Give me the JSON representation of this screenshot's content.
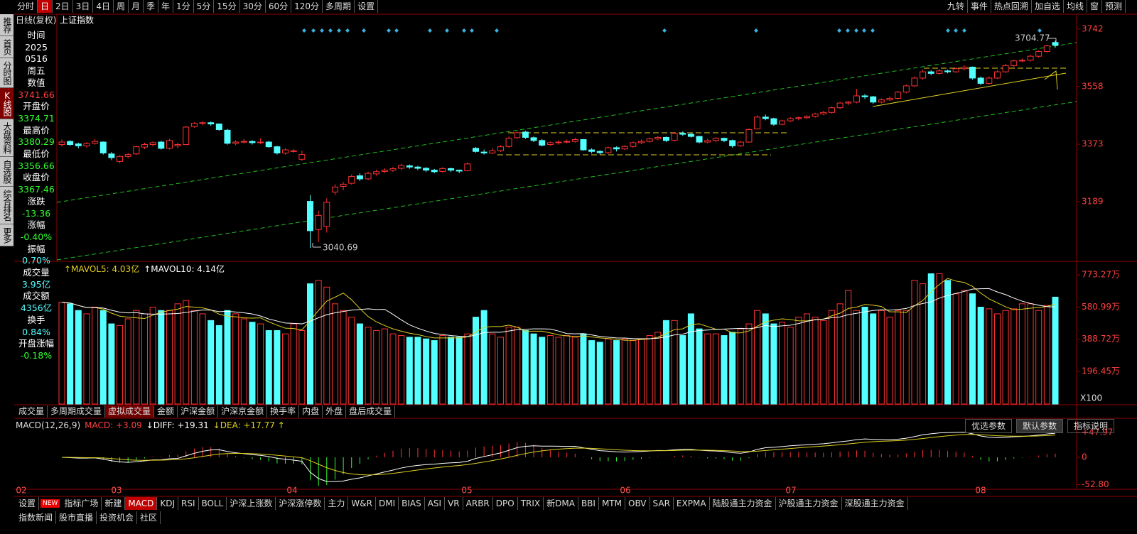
{
  "toolbar": {
    "left": [
      "分时",
      "日",
      "2日",
      "3日",
      "4日",
      "周",
      "月",
      "季",
      "年",
      "1分",
      "5分",
      "15分",
      "30分",
      "60分",
      "120分",
      "多周期",
      "设置"
    ],
    "right": [
      "九转",
      "事件",
      "热点回溯",
      "加自选",
      "均线",
      "窗",
      "预测"
    ]
  },
  "sidebar": [
    "推荐",
    "首页",
    "分时图",
    "K线图",
    "大盘资料",
    "自选股",
    "综合排名",
    "更多"
  ],
  "info": [
    {
      "label": "时间",
      "lines": [
        "2025",
        "0516",
        "周五"
      ],
      "color": "#ffffff"
    },
    {
      "label": "数值",
      "lines": [
        "3741.66"
      ],
      "color": "#ff4040"
    },
    {
      "label": "开盘价",
      "lines": [
        "3374.71"
      ],
      "color": "#30ff30"
    },
    {
      "label": "最高价",
      "lines": [
        "3380.29"
      ],
      "color": "#30ff30"
    },
    {
      "label": "最低价",
      "lines": [
        "3356.66"
      ],
      "color": "#30ff30"
    },
    {
      "label": "收盘价",
      "lines": [
        "3367.46"
      ],
      "color": "#30ff30"
    },
    {
      "label": "涨跌",
      "lines": [
        "-13.36"
      ],
      "color": "#30ff30"
    },
    {
      "label": "涨幅",
      "lines": [
        "-0.40%"
      ],
      "color": "#30ff30"
    },
    {
      "label": "振幅",
      "lines": [
        "0.70%"
      ],
      "color": "#54ffff"
    },
    {
      "label": "成交量",
      "lines": [
        "3.95亿"
      ],
      "color": "#54ffff"
    },
    {
      "label": "成交额",
      "lines": [
        "4356亿"
      ],
      "color": "#54ffff"
    },
    {
      "label": "换手",
      "lines": [
        "0.84%"
      ],
      "color": "#54ffff"
    },
    {
      "label": "开盘涨幅",
      "lines": [
        "-0.18%"
      ],
      "color": "#30ff30"
    }
  ],
  "chart_data": {
    "type": "candlestick",
    "title": "日线(复权)",
    "symbol": "上证指数",
    "months": [
      "02",
      "03",
      "04",
      "05",
      "06",
      "07",
      "08"
    ],
    "ylim": [
      2998,
      3785
    ],
    "yticks": [
      3742,
      3558,
      3373,
      3189
    ],
    "up_color": "#ff3232",
    "down_color": "#54ffff",
    "candles": [
      [
        3372,
        3388,
        3366,
        3380
      ],
      [
        3382,
        3386,
        3368,
        3372
      ],
      [
        3374,
        3378,
        3360,
        3368
      ],
      [
        3368,
        3380,
        3362,
        3375
      ],
      [
        3376,
        3390,
        3372,
        3382
      ],
      [
        3380,
        3382,
        3340,
        3345
      ],
      [
        3342,
        3348,
        3322,
        3330
      ],
      [
        3318,
        3338,
        3312,
        3334
      ],
      [
        3334,
        3345,
        3328,
        3340
      ],
      [
        3342,
        3368,
        3338,
        3365
      ],
      [
        3364,
        3378,
        3358,
        3372
      ],
      [
        3372,
        3382,
        3366,
        3378
      ],
      [
        3380,
        3384,
        3356,
        3360
      ],
      [
        3360,
        3390,
        3356,
        3385
      ],
      [
        3368,
        3378,
        3360,
        3372
      ],
      [
        3372,
        3432,
        3370,
        3428
      ],
      [
        3430,
        3444,
        3426,
        3440
      ],
      [
        3440,
        3446,
        3434,
        3442
      ],
      [
        3442,
        3446,
        3432,
        3438
      ],
      [
        3438,
        3440,
        3416,
        3420
      ],
      [
        3418,
        3422,
        3372,
        3376
      ],
      [
        3376,
        3386,
        3370,
        3380
      ],
      [
        3380,
        3390,
        3376,
        3382
      ],
      [
        3382,
        3386,
        3372,
        3378
      ],
      [
        3378,
        3392,
        3374,
        3380
      ],
      [
        3380,
        3384,
        3362,
        3365
      ],
      [
        3365,
        3368,
        3340,
        3345
      ],
      [
        3345,
        3360,
        3340,
        3355
      ],
      [
        3352,
        3358,
        3346,
        3352
      ],
      [
        3325,
        3352,
        3320,
        3340
      ],
      [
        3190,
        3210,
        3040.69,
        3096
      ],
      [
        3100,
        3160,
        3060,
        3145
      ],
      [
        3110,
        3200,
        3090,
        3187
      ],
      [
        3220,
        3245,
        3210,
        3236
      ],
      [
        3238,
        3252,
        3226,
        3245
      ],
      [
        3248,
        3276,
        3244,
        3270
      ],
      [
        3272,
        3280,
        3255,
        3262
      ],
      [
        3262,
        3285,
        3258,
        3280
      ],
      [
        3278,
        3292,
        3272,
        3285
      ],
      [
        3286,
        3296,
        3280,
        3290
      ],
      [
        3290,
        3300,
        3284,
        3295
      ],
      [
        3296,
        3310,
        3290,
        3305
      ],
      [
        3304,
        3308,
        3294,
        3300
      ],
      [
        3300,
        3304,
        3290,
        3296
      ],
      [
        3296,
        3300,
        3284,
        3290
      ],
      [
        3290,
        3294,
        3280,
        3285
      ],
      [
        3286,
        3300,
        3282,
        3295
      ],
      [
        3295,
        3298,
        3284,
        3290
      ],
      [
        3290,
        3292,
        3280,
        3287
      ],
      [
        3288,
        3315,
        3286,
        3310
      ],
      [
        3360,
        3364,
        3346,
        3350
      ],
      [
        3348,
        3356,
        3340,
        3345
      ],
      [
        3345,
        3360,
        3342,
        3352
      ],
      [
        3352,
        3370,
        3348,
        3365
      ],
      [
        3366,
        3398,
        3362,
        3392
      ],
      [
        3394,
        3414,
        3390,
        3410
      ],
      [
        3412,
        3416,
        3390,
        3395
      ],
      [
        3394,
        3398,
        3380,
        3385
      ],
      [
        3385,
        3390,
        3366,
        3370
      ],
      [
        3372,
        3382,
        3368,
        3378
      ],
      [
        3378,
        3386,
        3372,
        3380
      ],
      [
        3380,
        3388,
        3376,
        3382
      ],
      [
        3382,
        3394,
        3378,
        3388
      ],
      [
        3388,
        3390,
        3352,
        3355
      ],
      [
        3355,
        3360,
        3344,
        3350
      ],
      [
        3350,
        3354,
        3340,
        3346
      ],
      [
        3346,
        3366,
        3342,
        3362
      ],
      [
        3362,
        3366,
        3350,
        3358
      ],
      [
        3358,
        3370,
        3354,
        3366
      ],
      [
        3366,
        3382,
        3362,
        3378
      ],
      [
        3378,
        3388,
        3374,
        3382
      ],
      [
        3382,
        3394,
        3378,
        3390
      ],
      [
        3390,
        3400,
        3386,
        3395
      ],
      [
        3395,
        3398,
        3380,
        3385
      ],
      [
        3386,
        3412,
        3382,
        3408
      ],
      [
        3408,
        3414,
        3400,
        3405
      ],
      [
        3405,
        3410,
        3394,
        3398
      ],
      [
        3398,
        3400,
        3376,
        3380
      ],
      [
        3380,
        3390,
        3376,
        3385
      ],
      [
        3385,
        3396,
        3380,
        3392
      ],
      [
        3392,
        3394,
        3380,
        3385
      ],
      [
        3385,
        3388,
        3362,
        3368
      ],
      [
        3368,
        3384,
        3364,
        3380
      ],
      [
        3380,
        3424,
        3378,
        3420
      ],
      [
        3422,
        3466,
        3420,
        3460
      ],
      [
        3460,
        3468,
        3450,
        3455
      ],
      [
        3455,
        3458,
        3432,
        3437
      ],
      [
        3437,
        3452,
        3434,
        3448
      ],
      [
        3448,
        3460,
        3444,
        3455
      ],
      [
        3455,
        3462,
        3450,
        3458
      ],
      [
        3458,
        3466,
        3454,
        3462
      ],
      [
        3462,
        3474,
        3458,
        3470
      ],
      [
        3470,
        3480,
        3466,
        3475
      ],
      [
        3475,
        3494,
        3472,
        3490
      ],
      [
        3490,
        3508,
        3486,
        3505
      ],
      [
        3505,
        3512,
        3498,
        3508
      ],
      [
        3508,
        3550,
        3504,
        3528
      ],
      [
        3528,
        3534,
        3518,
        3525
      ],
      [
        3525,
        3528,
        3502,
        3508
      ],
      [
        3508,
        3520,
        3504,
        3515
      ],
      [
        3515,
        3526,
        3512,
        3520
      ],
      [
        3520,
        3544,
        3516,
        3540
      ],
      [
        3540,
        3564,
        3536,
        3560
      ],
      [
        3560,
        3590,
        3556,
        3585
      ],
      [
        3585,
        3612,
        3580,
        3605
      ],
      [
        3605,
        3610,
        3594,
        3600
      ],
      [
        3600,
        3614,
        3596,
        3608
      ],
      [
        3608,
        3612,
        3600,
        3605
      ],
      [
        3605,
        3620,
        3602,
        3615
      ],
      [
        3615,
        3626,
        3610,
        3620
      ],
      [
        3620,
        3622,
        3580,
        3585
      ],
      [
        3585,
        3590,
        3562,
        3568
      ],
      [
        3568,
        3590,
        3564,
        3585
      ],
      [
        3585,
        3610,
        3582,
        3605
      ],
      [
        3605,
        3630,
        3602,
        3625
      ],
      [
        3625,
        3644,
        3620,
        3640
      ],
      [
        3640,
        3648,
        3636,
        3642
      ],
      [
        3642,
        3660,
        3638,
        3655
      ],
      [
        3655,
        3674,
        3650,
        3670
      ],
      [
        3670,
        3692,
        3666,
        3688
      ],
      [
        3699,
        3704.77,
        3682,
        3690
      ]
    ],
    "volume": {
      "header": [
        "↑MAVOL5: 4.03亿",
        "↑MAVOL10: 4.14亿"
      ],
      "unit": "X100",
      "ylim": [
        0,
        816
      ],
      "yticks": [
        {
          "value": 773.27,
          "label": "773.27万"
        },
        {
          "value": 580.99,
          "label": "580.99万"
        },
        {
          "value": 388.72,
          "label": "388.72万"
        },
        {
          "value": 196.45,
          "label": "196.45万"
        }
      ],
      "values": [
        610,
        600,
        560,
        540,
        580,
        560,
        480,
        470,
        510,
        560,
        540,
        580,
        560,
        560,
        600,
        620,
        560,
        540,
        500,
        470,
        560,
        540,
        510,
        490,
        480,
        440,
        440,
        420,
        480,
        440,
        720,
        740,
        700,
        600,
        560,
        520,
        480,
        460,
        440,
        450,
        420,
        410,
        400,
        400,
        390,
        380,
        410,
        400,
        400,
        420,
        520,
        560,
        420,
        400,
        460,
        460,
        440,
        420,
        400,
        410,
        400,
        410,
        400,
        420,
        380,
        370,
        390,
        380,
        390,
        380,
        390,
        410,
        430,
        500,
        500,
        410,
        540,
        450,
        420,
        420,
        410,
        430,
        450,
        480,
        560,
        540,
        480,
        490,
        460,
        520,
        540,
        520,
        500,
        560,
        600,
        680,
        560,
        580,
        540,
        560,
        520,
        560,
        560,
        740,
        720,
        780,
        780,
        740,
        660,
        680,
        660,
        580,
        570,
        540,
        560,
        570,
        600,
        600,
        560,
        590,
        640
      ],
      "tabs": [
        "成交量",
        "多周期成交量",
        "虚拟成交量",
        "金额",
        "沪深金额",
        "沪深京金额",
        "换手率",
        "内盘",
        "外盘",
        "盘后成交量"
      ]
    },
    "macd": {
      "header": [
        "MACD(12,26,9)",
        "MACD: +3.09",
        "↓DIFF: +19.31",
        "↓DEA: +17.77 ↑"
      ],
      "buttons": [
        "优选参数",
        "默认参数",
        "指标说明"
      ],
      "ylim": [
        -60.3,
        71.3
      ],
      "yticks": [
        {
          "value": 47.97,
          "label": "+47.97"
        },
        0,
        {
          "value": -52.8,
          "label": "-52.80"
        }
      ]
    }
  },
  "indicator_tabs": [
    "设置",
    "NEW",
    "指标广场",
    "新建",
    "MACD",
    "KDJ",
    "RSI",
    "BOLL",
    "沪深上涨数",
    "沪深涨停数",
    "主力",
    "W&R",
    "DMI",
    "BIAS",
    "ASI",
    "VR",
    "ARBR",
    "DPO",
    "TRIX",
    "新DMA",
    "BBI",
    "MTM",
    "OBV",
    "SAR",
    "EXPMA",
    "陆股通主力资金",
    "沪股通主力资金",
    "深股通主力资金"
  ],
  "news_tabs": [
    "指数新闻",
    "股市直播",
    "投资机会",
    "社区"
  ]
}
